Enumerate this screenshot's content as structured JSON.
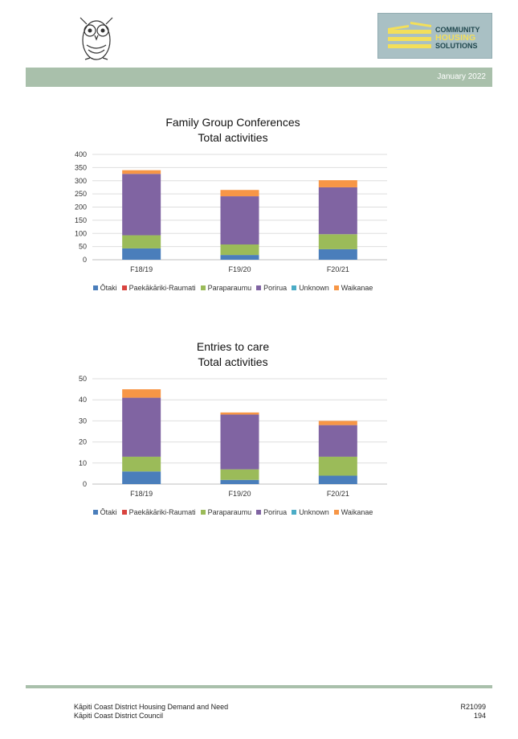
{
  "header": {
    "logo_lines": [
      "COMMUNITY",
      "HOUSING",
      "SOLUTIONS"
    ],
    "date": "January 2022"
  },
  "legend": [
    {
      "name": "Ōtaki",
      "color": "#4a7ebb"
    },
    {
      "name": "Paekākāriki-Raumati",
      "color": "#d9443f"
    },
    {
      "name": "Paraparaumu",
      "color": "#9bbb59"
    },
    {
      "name": "Porirua",
      "color": "#8064a2"
    },
    {
      "name": "Unknown",
      "color": "#4bacc6"
    },
    {
      "name": "Waikanae",
      "color": "#f79646"
    }
  ],
  "chart_data": [
    {
      "type": "bar",
      "stacked": true,
      "title": "Family Group Conferences\nTotal activities",
      "title_lines": [
        "Family Group Conferences",
        "Total activities"
      ],
      "categories": [
        "F18/19",
        "F19/20",
        "F20/21"
      ],
      "ylim": [
        0,
        400
      ],
      "yticks": [
        0,
        50,
        100,
        150,
        200,
        250,
        300,
        350,
        400
      ],
      "grid": true,
      "legend_position": "bottom",
      "series": [
        {
          "name": "Ōtaki",
          "color": "#4a7ebb",
          "values": [
            43,
            18,
            40
          ]
        },
        {
          "name": "Paekākāriki-Raumati",
          "color": "#d9443f",
          "values": [
            0,
            0,
            0
          ]
        },
        {
          "name": "Paraparaumu",
          "color": "#9bbb59",
          "values": [
            50,
            40,
            57
          ]
        },
        {
          "name": "Porirua",
          "color": "#8064a2",
          "values": [
            233,
            183,
            178
          ]
        },
        {
          "name": "Unknown",
          "color": "#4bacc6",
          "values": [
            0,
            0,
            0
          ]
        },
        {
          "name": "Waikanae",
          "color": "#f79646",
          "values": [
            14,
            24,
            27
          ]
        }
      ]
    },
    {
      "type": "bar",
      "stacked": true,
      "title": "Entries to care\nTotal activities",
      "title_lines": [
        "Entries to care",
        "Total activities"
      ],
      "categories": [
        "F18/19",
        "F19/20",
        "F20/21"
      ],
      "ylim": [
        0,
        50
      ],
      "yticks": [
        0,
        10,
        20,
        30,
        40,
        50
      ],
      "grid": true,
      "legend_position": "bottom",
      "series": [
        {
          "name": "Ōtaki",
          "color": "#4a7ebb",
          "values": [
            6,
            2,
            4
          ]
        },
        {
          "name": "Paekākāriki-Raumati",
          "color": "#d9443f",
          "values": [
            0,
            0,
            0
          ]
        },
        {
          "name": "Paraparaumu",
          "color": "#9bbb59",
          "values": [
            7,
            5,
            9
          ]
        },
        {
          "name": "Porirua",
          "color": "#8064a2",
          "values": [
            28,
            26,
            15
          ]
        },
        {
          "name": "Unknown",
          "color": "#4bacc6",
          "values": [
            0,
            0,
            0
          ]
        },
        {
          "name": "Waikanae",
          "color": "#f79646",
          "values": [
            4,
            1,
            2
          ]
        }
      ]
    }
  ],
  "footer": {
    "left_line1": "Kāpiti Coast District Housing Demand and Need",
    "left_line2": "Kāpiti Coast District Council",
    "right_line1": "R21099",
    "right_line2": "194"
  }
}
